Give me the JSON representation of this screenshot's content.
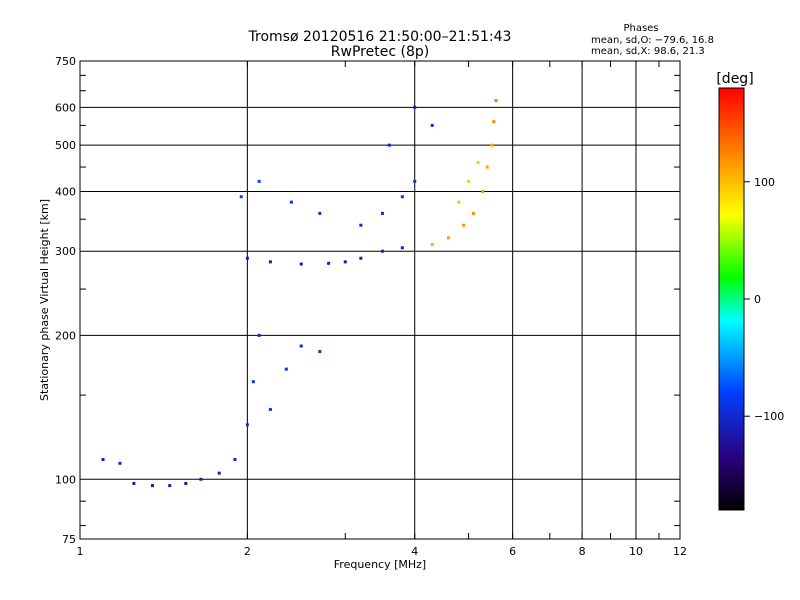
{
  "chart_data": {
    "type": "scatter",
    "title": "Tromsø 20120516 21:50:00–21:51:43",
    "subtitle": "RwPretec (8p)",
    "xlabel": "Frequency [MHz]",
    "ylabel": "Stationary phase Virtual Height [km]",
    "x_scale": "log",
    "y_scale": "log",
    "xlim": [
      1,
      12
    ],
    "ylim": [
      75,
      750
    ],
    "x_ticks": [
      1,
      2,
      4,
      6,
      8,
      10,
      12
    ],
    "y_ticks": [
      75,
      100,
      200,
      300,
      400,
      500,
      600,
      750
    ],
    "grid": true,
    "phase_info": {
      "heading": "Phases",
      "line1": "mean, sd,O: −79.6, 16.8",
      "line2": "mean, sd,X:  98.6, 21.3"
    },
    "colorbar": {
      "label": "[deg]",
      "range": [
        -180,
        180
      ],
      "ticks": [
        100,
        0,
        -100
      ],
      "colormap": "rainbow"
    },
    "series": [
      {
        "name": "O",
        "points": [
          [
            1.1,
            110,
            -110
          ],
          [
            1.18,
            108,
            -105
          ],
          [
            1.25,
            98,
            -115
          ],
          [
            1.35,
            97,
            -118
          ],
          [
            1.45,
            97,
            -112
          ],
          [
            1.55,
            98,
            -120
          ],
          [
            1.65,
            100,
            -108
          ],
          [
            1.78,
            103,
            -110
          ],
          [
            1.9,
            110,
            -100
          ],
          [
            2.0,
            130,
            -95
          ],
          [
            2.05,
            160,
            -90
          ],
          [
            2.1,
            200,
            -98
          ],
          [
            2.2,
            140,
            -92
          ],
          [
            2.35,
            170,
            -88
          ],
          [
            2.5,
            190,
            -100
          ],
          [
            2.7,
            185,
            -95
          ],
          [
            2.0,
            290,
            -110
          ],
          [
            2.2,
            285,
            -112
          ],
          [
            2.5,
            282,
            -115
          ],
          [
            2.8,
            283,
            -108
          ],
          [
            1.95,
            390,
            -85
          ],
          [
            2.1,
            420,
            -80
          ],
          [
            2.4,
            380,
            -88
          ],
          [
            2.7,
            360,
            -90
          ],
          [
            3.0,
            285,
            -118
          ],
          [
            3.2,
            290,
            -115
          ],
          [
            3.5,
            300,
            -110
          ],
          [
            3.8,
            305,
            -105
          ],
          [
            3.2,
            340,
            -100
          ],
          [
            3.5,
            360,
            -95
          ],
          [
            3.8,
            390,
            -92
          ],
          [
            4.0,
            420,
            -90
          ],
          [
            3.6,
            500,
            -100
          ],
          [
            4.0,
            600,
            -110
          ],
          [
            4.3,
            550,
            -95
          ]
        ]
      },
      {
        "name": "X",
        "points": [
          [
            4.3,
            310,
            110
          ],
          [
            4.6,
            320,
            115
          ],
          [
            4.9,
            340,
            118
          ],
          [
            5.1,
            360,
            120
          ],
          [
            5.3,
            400,
            115
          ],
          [
            5.4,
            450,
            110
          ],
          [
            5.5,
            500,
            105
          ],
          [
            5.55,
            560,
            125
          ],
          [
            5.6,
            620,
            130
          ],
          [
            4.8,
            380,
            100
          ],
          [
            5.0,
            420,
            95
          ],
          [
            5.2,
            460,
            90
          ]
        ]
      }
    ]
  }
}
